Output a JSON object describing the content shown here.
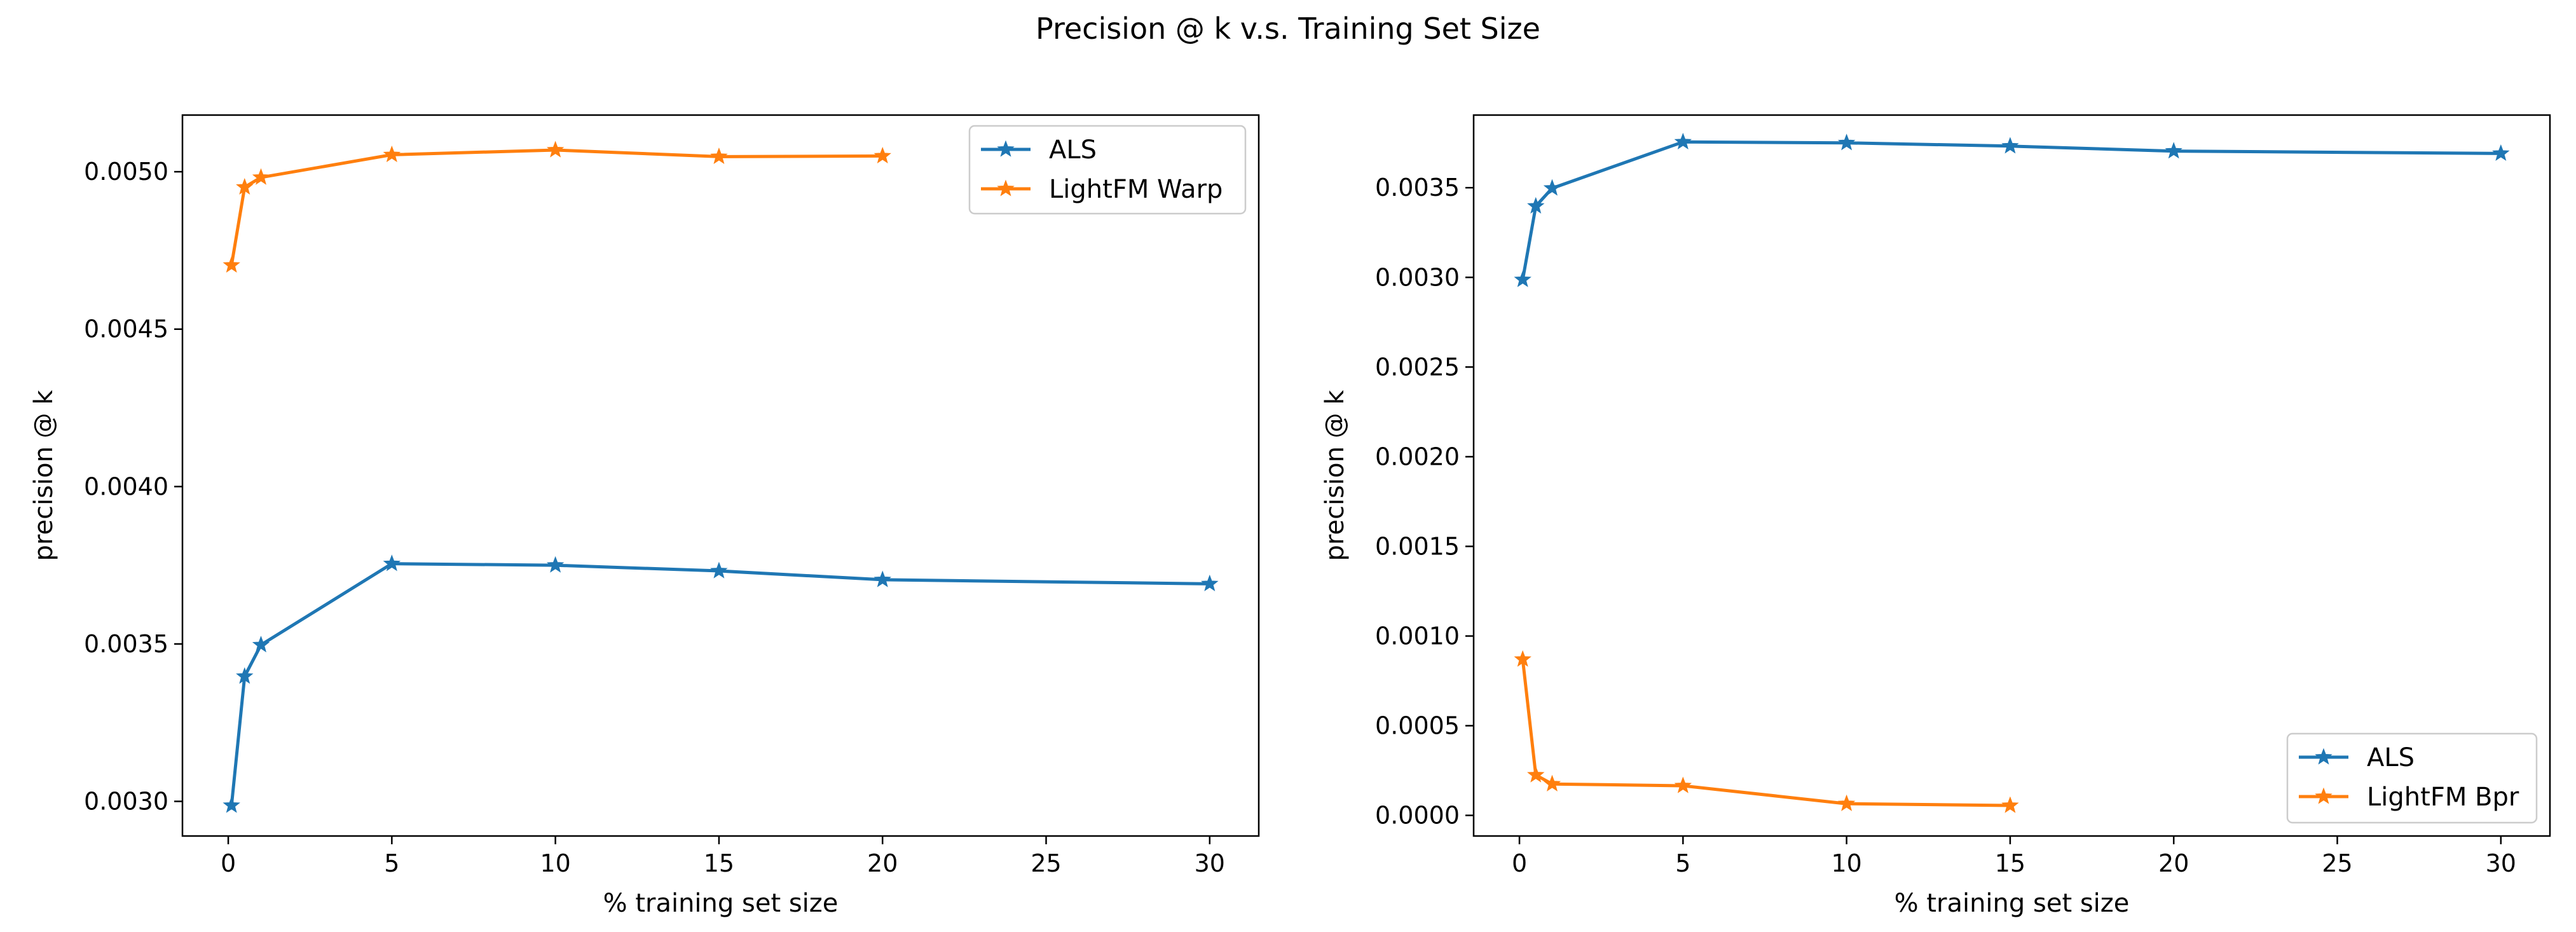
{
  "figure": {
    "title": "Precision @ k v.s. Training Set Size"
  },
  "chart_data": [
    {
      "type": "line",
      "title": "",
      "xlabel": "% training set size",
      "ylabel": "precision @ k",
      "xlim": [
        -1.4,
        31.5
      ],
      "ylim": [
        0.00289,
        0.00518
      ],
      "xticks": [
        0,
        5,
        10,
        15,
        20,
        25,
        30
      ],
      "yticks": [
        0.003,
        0.0035,
        0.004,
        0.0045,
        0.005
      ],
      "xtick_labels": [
        "0",
        "5",
        "10",
        "15",
        "20",
        "25",
        "30"
      ],
      "ytick_labels": [
        "0.0030",
        "0.0035",
        "0.0040",
        "0.0045",
        "0.0050"
      ],
      "grid": false,
      "legend_position": "upper right",
      "series": [
        {
          "name": "ALS",
          "color": "#1f77b4",
          "marker": "star",
          "x": [
            0.1,
            0.5,
            1,
            5,
            10,
            15,
            20,
            30
          ],
          "y": [
            0.002987,
            0.003397,
            0.003497,
            0.003755,
            0.00375,
            0.003732,
            0.003704,
            0.003691
          ]
        },
        {
          "name": "LightFM Warp",
          "color": "#ff7f0e",
          "marker": "star",
          "x": [
            0.1,
            0.5,
            1,
            5,
            10,
            15,
            20
          ],
          "y": [
            0.004703,
            0.004951,
            0.004982,
            0.005054,
            0.005069,
            0.005048,
            0.00505
          ]
        }
      ]
    },
    {
      "type": "line",
      "title": "",
      "xlabel": "% training set size",
      "ylabel": "precision @ k",
      "xlim": [
        -1.4,
        31.5
      ],
      "ylim": [
        -0.000115,
        0.003905
      ],
      "xticks": [
        0,
        5,
        10,
        15,
        20,
        25,
        30
      ],
      "yticks": [
        0.0,
        0.0005,
        0.001,
        0.0015,
        0.002,
        0.0025,
        0.003,
        0.0035
      ],
      "xtick_labels": [
        "0",
        "5",
        "10",
        "15",
        "20",
        "25",
        "30"
      ],
      "ytick_labels": [
        "0.0000",
        "0.0005",
        "0.0010",
        "0.0015",
        "0.0020",
        "0.0025",
        "0.0030",
        "0.0035"
      ],
      "grid": false,
      "legend_position": "lower right",
      "series": [
        {
          "name": "ALS",
          "color": "#1f77b4",
          "marker": "star",
          "x": [
            0.1,
            0.5,
            1,
            5,
            10,
            15,
            20,
            30
          ],
          "y": [
            0.002987,
            0.003397,
            0.003497,
            0.003755,
            0.00375,
            0.003732,
            0.003704,
            0.003691
          ]
        },
        {
          "name": "LightFM Bpr",
          "color": "#ff7f0e",
          "marker": "star",
          "x": [
            0.1,
            0.5,
            1,
            5,
            10,
            15
          ],
          "y": [
            0.00087,
            0.000225,
            0.000175,
            0.000165,
            6.5e-05,
            5.5e-05
          ]
        }
      ]
    }
  ]
}
